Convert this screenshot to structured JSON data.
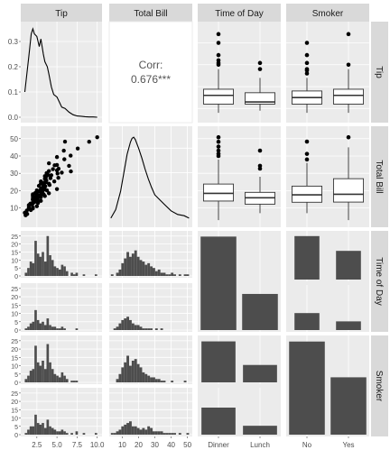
{
  "figure": {
    "variables": [
      "Tip",
      "Total Bill",
      "Time of Day",
      "Smoker"
    ]
  },
  "chart_data": [
    {
      "type": "line",
      "panel": "Tip vs Tip (density)",
      "x_ticks": [
        "2.5",
        "5.0",
        "7.5",
        "10.0"
      ],
      "y_ticks": [
        "0.0",
        "0.1",
        "0.2",
        "0.3"
      ],
      "series": [
        {
          "x": [
            1.0,
            1.5,
            1.8,
            2.0,
            2.2,
            2.5,
            2.8,
            3.0,
            3.3,
            3.5,
            3.8,
            4.0,
            4.3,
            4.6,
            5.0,
            5.3,
            5.6,
            6.0,
            6.5,
            7.0,
            7.5,
            8.0,
            8.5,
            9.0,
            9.5,
            10.0
          ],
          "y": [
            0.1,
            0.24,
            0.33,
            0.35,
            0.33,
            0.32,
            0.28,
            0.31,
            0.25,
            0.22,
            0.2,
            0.17,
            0.12,
            0.09,
            0.08,
            0.06,
            0.04,
            0.035,
            0.02,
            0.01,
            0.005,
            0.004,
            0.002,
            0.001,
            0.001,
            0.0
          ]
        }
      ]
    },
    {
      "type": "text",
      "panel": "Tip vs Total Bill (correlation)",
      "label": "Corr:",
      "value": "0.676***"
    },
    {
      "type": "box",
      "panel": "Tip by Time of Day",
      "categories": [
        "Dinner",
        "Lunch"
      ],
      "y_ticks": [
        "0.0",
        "0.1",
        "0.2",
        "0.3"
      ],
      "boxes": [
        {
          "q1": 2.0,
          "median": 3.0,
          "q3": 3.7,
          "lo": 1.0,
          "hi": 6.0,
          "outliers": [
            6.5,
            6.7,
            7.0,
            7.6,
            9.0,
            10.0
          ]
        },
        {
          "q1": 2.0,
          "median": 2.25,
          "q3": 3.3,
          "lo": 1.25,
          "hi": 5.0,
          "outliers": [
            6.0,
            6.7
          ]
        }
      ]
    },
    {
      "type": "box",
      "panel": "Tip by Smoker",
      "categories": [
        "No",
        "Yes"
      ],
      "y_ticks": [
        "0.0",
        "0.1",
        "0.2",
        "0.3"
      ],
      "boxes": [
        {
          "q1": 2.0,
          "median": 2.75,
          "q3": 3.5,
          "lo": 1.0,
          "hi": 5.0,
          "outliers": [
            5.5,
            5.85,
            6.0,
            6.7,
            7.6,
            9.0
          ]
        },
        {
          "q1": 2.0,
          "median": 3.0,
          "q3": 3.7,
          "lo": 1.0,
          "hi": 6.0,
          "outliers": [
            6.5,
            10.0
          ]
        }
      ]
    },
    {
      "type": "scatter",
      "panel": "Total Bill vs Tip",
      "x_ticks": [
        "2.5",
        "5.0",
        "7.5",
        "10.0"
      ],
      "y_ticks": [
        "10",
        "20",
        "30",
        "40",
        "50"
      ],
      "x": [
        1.0,
        1.25,
        1.5,
        1.5,
        1.7,
        1.75,
        2.0,
        2.0,
        2.0,
        2.0,
        2.0,
        2.01,
        2.09,
        2.2,
        2.23,
        2.31,
        2.5,
        2.5,
        2.5,
        2.6,
        2.64,
        2.75,
        3.0,
        3.0,
        3.0,
        3.0,
        3.0,
        3.0,
        3.08,
        3.12,
        3.18,
        3.23,
        3.31,
        3.35,
        3.39,
        3.4,
        3.5,
        3.5,
        3.5,
        3.5,
        3.55,
        3.61,
        3.68,
        3.71,
        3.76,
        3.9,
        4.0,
        4.0,
        4.0,
        4.0,
        4.08,
        4.19,
        4.3,
        4.5,
        4.67,
        4.71,
        5.0,
        5.0,
        5.0,
        5.0,
        5.07,
        5.17,
        5.2,
        5.6,
        5.85,
        5.92,
        6.0,
        6.5,
        6.7,
        6.73,
        7.58,
        9.0,
        10.0,
        2.0,
        2.5,
        1.5,
        1.8,
        2.2,
        2.0,
        1.6,
        2.3,
        2.9,
        3.2,
        2.1,
        1.9,
        2.6,
        3.4,
        2.8,
        2.4,
        1.3,
        1.1,
        2.7,
        3.6,
        2.0
      ],
      "y": [
        7.25,
        8.5,
        9.5,
        11.6,
        12.5,
        8.8,
        10.3,
        12.7,
        14.8,
        15.0,
        17.9,
        16.0,
        13.9,
        13.4,
        16.4,
        18.7,
        17.3,
        18.1,
        20.2,
        15.1,
        12.9,
        22.8,
        14.1,
        16.3,
        19.4,
        21.0,
        24.1,
        25.3,
        18.3,
        21.5,
        19.8,
        20.3,
        22.4,
        17.8,
        23.2,
        24.6,
        16.9,
        20.7,
        26.9,
        28.4,
        22.5,
        27.6,
        25.9,
        30.1,
        20.1,
        29.0,
        18.5,
        24.0,
        31.3,
        35.8,
        23.3,
        27.2,
        28.9,
        32.4,
        25.3,
        34.6,
        20.9,
        31.7,
        34.8,
        39.4,
        29.9,
        27.4,
        32.7,
        30.4,
        43.1,
        38.1,
        48.3,
        34.3,
        40.2,
        31.1,
        44.3,
        48.2,
        50.8,
        9.7,
        11.0,
        10.3,
        12.2,
        14.5,
        13.1,
        11.9,
        15.9,
        17.5,
        19.0,
        13.8,
        12.0,
        14.3,
        21.9,
        16.6,
        15.5,
        6.5,
        5.8,
        19.7,
        24.8,
        17.1
      ]
    },
    {
      "type": "line",
      "panel": "Total Bill vs Total Bill (density)",
      "x_ticks": [
        "10",
        "20",
        "30",
        "40",
        "50"
      ],
      "series": [
        {
          "x": [
            3,
            6,
            9,
            11,
            13,
            15,
            16,
            17,
            18,
            20,
            22,
            24,
            26,
            28,
            30,
            33,
            36,
            40,
            44,
            48,
            51
          ],
          "y": [
            0.003,
            0.01,
            0.025,
            0.04,
            0.055,
            0.065,
            0.068,
            0.069,
            0.067,
            0.06,
            0.052,
            0.043,
            0.035,
            0.028,
            0.022,
            0.018,
            0.014,
            0.009,
            0.006,
            0.005,
            0.003
          ]
        }
      ]
    },
    {
      "type": "box",
      "panel": "Total Bill by Time of Day",
      "categories": [
        "Dinner",
        "Lunch"
      ],
      "y_ticks": [
        "10",
        "20",
        "30",
        "40",
        "50"
      ],
      "boxes": [
        {
          "q1": 14.0,
          "median": 18.4,
          "q3": 23.8,
          "lo": 3.0,
          "hi": 38.0,
          "outliers": [
            40.0,
            41.2,
            43.1,
            45.4,
            48.2,
            50.8
          ]
        },
        {
          "q1": 12.2,
          "median": 15.9,
          "q3": 19.0,
          "lo": 7.0,
          "hi": 28.0,
          "outliers": [
            32.7,
            34.3,
            43.1
          ]
        }
      ]
    },
    {
      "type": "box",
      "panel": "Total Bill by Smoker",
      "categories": [
        "No",
        "Yes"
      ],
      "y_ticks": [
        "10",
        "20",
        "30",
        "40",
        "50"
      ],
      "boxes": [
        {
          "q1": 13.3,
          "median": 17.6,
          "q3": 22.6,
          "lo": 7.0,
          "hi": 36.0,
          "outliers": [
            38.0,
            41.2,
            48.3
          ]
        },
        {
          "q1": 13.4,
          "median": 17.9,
          "q3": 26.9,
          "lo": 3.0,
          "hi": 45.0,
          "outliers": [
            50.8
          ]
        }
      ]
    },
    {
      "type": "bar",
      "panel": "Time of Day vs Tip (Dinner histogram)",
      "y_ticks": [
        "0",
        "5",
        "10",
        "15",
        "20",
        "25"
      ],
      "bin_start": 1.0,
      "bin_width": 0.3,
      "values": [
        2,
        5,
        9,
        8,
        22,
        14,
        12,
        15,
        9,
        25,
        13,
        10,
        6,
        5,
        4,
        7,
        6,
        3,
        0,
        2,
        1,
        2,
        0,
        0,
        1,
        0,
        0,
        0,
        0,
        1
      ]
    },
    {
      "type": "bar",
      "panel": "Time of Day vs Tip (Lunch histogram)",
      "y_ticks": [
        "0",
        "5",
        "10",
        "15",
        "20",
        "25"
      ],
      "bin_start": 1.0,
      "bin_width": 0.3,
      "values": [
        1,
        2,
        4,
        5,
        12,
        6,
        4,
        5,
        3,
        7,
        3,
        2,
        2,
        1,
        1,
        2,
        1,
        0,
        0,
        0,
        0,
        1
      ]
    },
    {
      "type": "bar",
      "panel": "Time of Day vs Total Bill (Dinner histogram)",
      "bin_start": 3.0,
      "bin_width": 1.6,
      "values": [
        1,
        0,
        2,
        4,
        8,
        11,
        15,
        12,
        14,
        16,
        12,
        10,
        9,
        7,
        8,
        6,
        5,
        3,
        4,
        2,
        2,
        1,
        1,
        2,
        1,
        0,
        1,
        0,
        1,
        1
      ]
    },
    {
      "type": "bar",
      "panel": "Time of Day vs Total Bill (Lunch histogram)",
      "bin_start": 3.0,
      "bin_width": 1.6,
      "values": [
        0,
        1,
        2,
        4,
        6,
        7,
        8,
        6,
        4,
        3,
        3,
        2,
        1,
        1,
        1,
        1,
        0,
        1,
        0,
        1
      ]
    },
    {
      "type": "bar",
      "panel": "Time of Day counts",
      "categories": [
        "Dinner",
        "Lunch"
      ],
      "values": [
        176,
        68
      ]
    },
    {
      "type": "bar",
      "panel": "Time of Day by Smoker",
      "categories": [
        "No",
        "Yes"
      ],
      "series": [
        {
          "group": "Dinner",
          "values": [
            106,
            70
          ]
        },
        {
          "group": "Lunch",
          "values": [
            45,
            23
          ]
        }
      ]
    },
    {
      "type": "bar",
      "panel": "Smoker vs Tip (No histogram)",
      "y_ticks": [
        "0",
        "5",
        "10",
        "15",
        "20",
        "25"
      ],
      "bin_start": 1.0,
      "bin_width": 0.3,
      "values": [
        2,
        4,
        7,
        8,
        22,
        12,
        10,
        13,
        8,
        23,
        12,
        8,
        5,
        4,
        3,
        6,
        4,
        2,
        0,
        1,
        1,
        1
      ]
    },
    {
      "type": "bar",
      "panel": "Smoker vs Tip (Yes histogram)",
      "y_ticks": [
        "0",
        "5",
        "10",
        "15",
        "20",
        "25"
      ],
      "bin_start": 1.0,
      "bin_width": 0.3,
      "values": [
        1,
        3,
        5,
        5,
        12,
        7,
        6,
        7,
        4,
        9,
        5,
        4,
        3,
        2,
        2,
        3,
        2,
        1,
        0,
        1,
        0,
        2,
        0,
        0,
        1,
        0,
        0,
        0,
        0,
        1
      ]
    },
    {
      "type": "bar",
      "panel": "Smoker vs Total Bill (No histogram)",
      "bin_start": 3.0,
      "bin_width": 1.6,
      "values": [
        0,
        0,
        2,
        5,
        9,
        12,
        16,
        10,
        13,
        14,
        11,
        9,
        6,
        5,
        4,
        3,
        3,
        2,
        2,
        1,
        1,
        0,
        0,
        1,
        0,
        0,
        0,
        0,
        1
      ]
    },
    {
      "type": "bar",
      "panel": "Smoker vs Total Bill (Yes histogram)",
      "bin_start": 3.0,
      "bin_width": 1.6,
      "values": [
        1,
        1,
        2,
        3,
        5,
        6,
        7,
        8,
        5,
        5,
        4,
        3,
        4,
        3,
        5,
        4,
        2,
        2,
        2,
        2,
        1,
        1,
        1,
        1,
        1,
        0,
        1,
        0,
        0,
        1
      ]
    },
    {
      "type": "bar",
      "panel": "Smoker by Time of Day",
      "categories": [
        "Dinner",
        "Lunch"
      ],
      "series": [
        {
          "group": "No",
          "values": [
            106,
            45
          ]
        },
        {
          "group": "Yes",
          "values": [
            70,
            23
          ]
        }
      ]
    },
    {
      "type": "bar",
      "panel": "Smoker counts",
      "categories": [
        "No",
        "Yes"
      ],
      "values": [
        151,
        93
      ]
    }
  ],
  "bottom_axes": {
    "tip": [
      "2.5",
      "5.0",
      "7.5",
      "10.0"
    ],
    "total_bill": [
      "10",
      "20",
      "30",
      "40",
      "50"
    ],
    "time": [
      "Dinner",
      "Lunch"
    ],
    "smoker": [
      "No",
      "Yes"
    ]
  }
}
